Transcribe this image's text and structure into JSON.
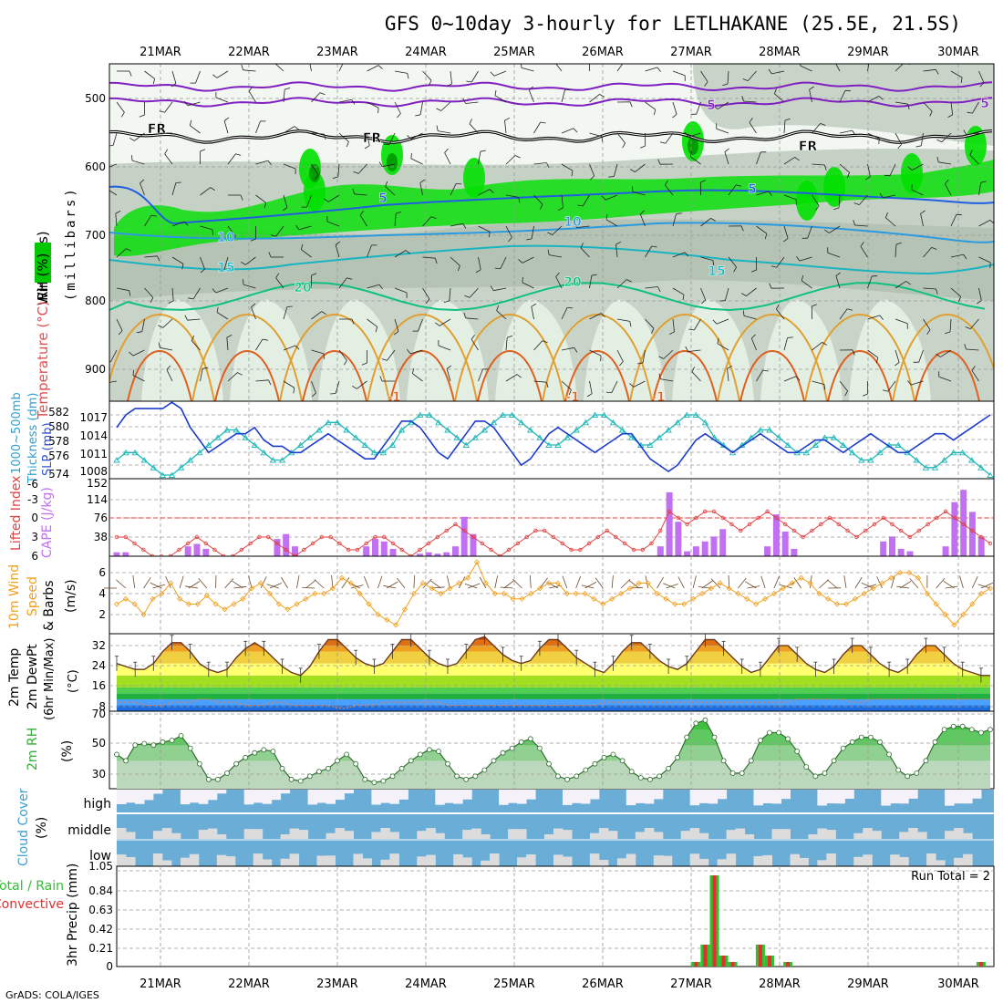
{
  "title": "GFS 0~10day 3-hourly for LETLHAKANE (25.5E, 21.5S)",
  "footer": "GrADS: COLA/IGES",
  "date_labels": [
    "21MAR",
    "22MAR",
    "23MAR",
    "24MAR",
    "25MAR",
    "26MAR",
    "27MAR",
    "28MAR",
    "29MAR",
    "30MAR"
  ],
  "colors": {
    "rh_green": "#00e000",
    "rh_dark": "#00a000",
    "rh_gray": "#a8b8a8",
    "rh_light": "#e6f0e6",
    "temp_5": "#1f5fe0",
    "temp_10": "#2b9be0",
    "temp_15": "#18b4c0",
    "temp_20": "#10c080",
    "temp_warm": "#e0a030",
    "temp_hot": "#e06020",
    "temp_500": "#8020c0",
    "slp": "#1c3ccc",
    "thickness": "#20b8b8",
    "li": "#e04040",
    "cape": "#c070f0",
    "wind10": "#f0a020",
    "precip_total": "#30c030",
    "precip_conv": "#e03030",
    "cloud": "#6aaed8",
    "cloud_clear": "#dcdcdc"
  },
  "panels": {
    "upper": {
      "ylabel_wind": "Wind (m/s)",
      "ylabel_temp": "Temperature (°C)",
      "ylabel_rh": "RH (%)",
      "ylabel_pressure": "(millibars)",
      "levels": [
        500,
        600,
        700,
        800,
        900
      ],
      "isotherm_labels": [
        {
          "text": "5",
          "color_key": "temp_500"
        },
        {
          "text": "5",
          "color_key": "temp_500"
        },
        {
          "text": "FR",
          "color_key": "black"
        },
        {
          "text": "FR",
          "color_key": "black"
        },
        {
          "text": "FR",
          "color_key": "black"
        },
        {
          "text": "5",
          "color_key": "temp_5"
        },
        {
          "text": "5",
          "color_key": "temp_5"
        },
        {
          "text": "10",
          "color_key": "temp_10"
        },
        {
          "text": "10",
          "color_key": "temp_10"
        },
        {
          "text": "15",
          "color_key": "temp_15"
        },
        {
          "text": "15",
          "color_key": "temp_15"
        },
        {
          "text": "20",
          "color_key": "temp_20"
        },
        {
          "text": "20",
          "color_key": "temp_20"
        },
        {
          "text": "-1",
          "color_key": "temp_hot"
        },
        {
          "text": "-1",
          "color_key": "temp_hot"
        },
        {
          "text": "-1",
          "color_key": "temp_hot"
        }
      ]
    },
    "slp": {
      "ylabel_left": "Thickness (dm)",
      "ylabel_left2": "1000~500mb",
      "ylabel_right": "SLP (mb)",
      "ticks_thickness": [
        "582",
        "580",
        "578",
        "576",
        "574"
      ],
      "ticks_slp": [
        "1017",
        "1014",
        "1011",
        "1008"
      ]
    },
    "cape": {
      "ylabel_left": "Lifted Index",
      "ylabel_right": "CAPE (J/kg)",
      "ticks_li": [
        "-6",
        "-3",
        "0",
        "3",
        "6"
      ],
      "ticks_cape": [
        "152",
        "114",
        "76",
        "38"
      ]
    },
    "wind10": {
      "ylabel1": "10m Wind",
      "ylabel2": "Speed",
      "ylabel3": "& Barbs",
      "ylabel_units": "(m/s)",
      "ticks": [
        "6",
        "4",
        "2"
      ]
    },
    "temp2m": {
      "ylabel1": "2m Temp",
      "ylabel2": "2m DewPt",
      "ylabel3": "(6hr Min/Max)",
      "ylabel_units": "(°C)",
      "ticks": [
        "32",
        "24",
        "16",
        "8"
      ]
    },
    "rh2m": {
      "ylabel": "2m RH",
      "ylabel_units": "(%)",
      "ticks": [
        "70",
        "50",
        "30"
      ]
    },
    "cloud": {
      "ylabel": "Cloud Cover",
      "ylabel_units": "(%)",
      "labels": [
        "high",
        "middle",
        "low"
      ]
    },
    "precip": {
      "ylabel1": "Total / Rain",
      "ylabel2": "Convective",
      "ylabel_units": "3hr Precip (mm)",
      "ticks": [
        "1.05",
        "0.84",
        "0.63",
        "0.42",
        "0.21",
        "0"
      ],
      "run_total": "Run Total = 2"
    }
  },
  "chart_data": [
    {
      "type": "line",
      "name": "slp_thickness",
      "series": [
        {
          "name": "SLP (mb)",
          "unit": "mb",
          "values": [
            1015,
            1017,
            1018,
            1018,
            1018,
            1018,
            1019,
            1018,
            1015,
            1013,
            1011,
            1012,
            1013,
            1014,
            1014,
            1015,
            1013,
            1012,
            1012,
            1011,
            1011,
            1012,
            1013,
            1014,
            1013,
            1012,
            1011,
            1010,
            1010,
            1012,
            1014,
            1016,
            1016,
            1015,
            1013,
            1011,
            1010,
            1012,
            1014,
            1016,
            1016,
            1015,
            1013,
            1011,
            1009,
            1010,
            1012,
            1014,
            1015,
            1014,
            1013,
            1012,
            1011,
            1012,
            1013,
            1014,
            1014,
            1012,
            1010,
            1009,
            1008,
            1009,
            1011,
            1013,
            1014,
            1013,
            1012,
            1011,
            1012,
            1013,
            1014,
            1013,
            1012,
            1011,
            1011,
            1012,
            1013,
            1013,
            1012,
            1011,
            1012,
            1013,
            1014,
            1013,
            1012,
            1011,
            1011,
            1012,
            1013,
            1014,
            1014,
            1013,
            1014,
            1015,
            1016,
            1017
          ]
        },
        {
          "name": "Thickness (dm)",
          "unit": "dm",
          "values": [
            576,
            577,
            577,
            576,
            575,
            574,
            574,
            575,
            576,
            577,
            578,
            579,
            580,
            580,
            579,
            578,
            577,
            576,
            576,
            577,
            578,
            579,
            580,
            581,
            581,
            580,
            579,
            578,
            577,
            577,
            578,
            580,
            581,
            582,
            582,
            581,
            580,
            579,
            578,
            579,
            580,
            581,
            582,
            582,
            581,
            580,
            579,
            578,
            578,
            579,
            580,
            581,
            582,
            582,
            581,
            580,
            579,
            578,
            578,
            579,
            580,
            581,
            582,
            582,
            581,
            579,
            578,
            577,
            578,
            579,
            580,
            580,
            579,
            578,
            577,
            577,
            578,
            579,
            579,
            578,
            577,
            576,
            576,
            577,
            578,
            578,
            577,
            576,
            575,
            575,
            576,
            577,
            577,
            576,
            575,
            574
          ]
        }
      ]
    },
    {
      "type": "bar",
      "name": "cape_li",
      "cape_values": [
        8,
        8,
        0,
        0,
        0,
        0,
        0,
        0,
        20,
        25,
        15,
        0,
        0,
        0,
        0,
        0,
        0,
        0,
        35,
        45,
        20,
        0,
        0,
        0,
        0,
        0,
        0,
        0,
        20,
        35,
        30,
        15,
        0,
        0,
        5,
        8,
        5,
        8,
        20,
        80,
        45,
        0,
        0,
        0,
        0,
        0,
        0,
        0,
        0,
        0,
        0,
        0,
        0,
        0,
        0,
        0,
        0,
        0,
        0,
        0,
        0,
        20,
        130,
        70,
        10,
        20,
        30,
        40,
        55,
        0,
        0,
        0,
        0,
        20,
        85,
        50,
        15,
        0,
        0,
        0,
        0,
        0,
        0,
        0,
        0,
        0,
        30,
        40,
        15,
        10,
        0,
        0,
        0,
        20,
        110,
        135,
        90,
        40,
        0
      ],
      "li_values": [
        3,
        3,
        4,
        5,
        6,
        6,
        6,
        5,
        4,
        3,
        4,
        5,
        6,
        6,
        5,
        4,
        3,
        3,
        4,
        5,
        6,
        5,
        4,
        3,
        3,
        4,
        5,
        5,
        4,
        3,
        3,
        4,
        5,
        6,
        5,
        4,
        3,
        2,
        1,
        2,
        3,
        4,
        5,
        6,
        5,
        4,
        3,
        2,
        2,
        3,
        4,
        5,
        5,
        4,
        3,
        2,
        3,
        4,
        5,
        5,
        4,
        2,
        -1,
        0,
        1,
        0,
        -1,
        -1,
        0,
        1,
        2,
        1,
        0,
        -1,
        0,
        1,
        2,
        3,
        2,
        1,
        0,
        1,
        2,
        3,
        2,
        1,
        0,
        1,
        2,
        3,
        2,
        1,
        0,
        -1,
        0,
        1,
        2,
        3,
        4
      ]
    },
    {
      "type": "line",
      "name": "wind10m_speed",
      "values": [
        3,
        3.5,
        3,
        2,
        3.5,
        4,
        5,
        3.5,
        3,
        3,
        3.8,
        3,
        2.5,
        3,
        3.5,
        4.5,
        5,
        4,
        3,
        2.5,
        3,
        3.5,
        4,
        4,
        4.5,
        5.5,
        5,
        4,
        3,
        2,
        1.5,
        1,
        2.5,
        4,
        5,
        4.5,
        4,
        4.5,
        5,
        5.5,
        7,
        5,
        4,
        4,
        3.5,
        3.5,
        4,
        4.5,
        5,
        5,
        4,
        4,
        4,
        3.5,
        3,
        3.5,
        4,
        4.5,
        5,
        5,
        4,
        3.5,
        3,
        3,
        3.5,
        4,
        4.5,
        5,
        4.5,
        4,
        3.5,
        3,
        3.5,
        4,
        4.5,
        5,
        5.5,
        5,
        4,
        3.5,
        3,
        3,
        3.5,
        4,
        4.5,
        5,
        5.5,
        6,
        6,
        5.5,
        4,
        3,
        2,
        1,
        2,
        3,
        4,
        4.5
      ]
    },
    {
      "type": "area",
      "name": "temp2m",
      "temperature": [
        24,
        23,
        22,
        22,
        24,
        28,
        31,
        31,
        28,
        24,
        22,
        21,
        22,
        26,
        29,
        31,
        29,
        26,
        23,
        21,
        20,
        23,
        28,
        32,
        32,
        29,
        26,
        24,
        23,
        24,
        28,
        32,
        32,
        29,
        26,
        24,
        23,
        24,
        28,
        32,
        33,
        30,
        27,
        25,
        24,
        25,
        29,
        32,
        32,
        29,
        26,
        24,
        22,
        21,
        24,
        28,
        31,
        31,
        28,
        25,
        23,
        22,
        24,
        28,
        32,
        32,
        29,
        26,
        23,
        21,
        22,
        26,
        30,
        30,
        27,
        24,
        22,
        21,
        23,
        27,
        30,
        30,
        27,
        24,
        22,
        21,
        23,
        27,
        30,
        30,
        27,
        24,
        22,
        21,
        20,
        20
      ],
      "dewpoint": [
        11,
        11,
        11,
        10,
        10,
        10,
        11,
        11,
        11,
        12,
        12,
        11,
        11,
        11,
        10,
        10,
        10,
        11,
        11,
        10,
        10,
        10,
        10,
        10,
        9,
        9,
        10,
        10,
        10,
        11,
        11,
        11,
        11,
        11,
        11,
        11,
        10,
        10,
        10,
        10,
        10,
        10,
        10,
        10,
        10,
        10,
        10,
        10,
        10,
        10,
        10,
        10,
        10,
        11,
        11,
        11,
        11,
        11,
        11,
        11,
        11,
        11,
        11,
        11,
        11,
        11,
        11,
        11,
        11,
        11,
        11,
        11,
        11,
        11,
        12,
        12,
        12,
        12,
        12,
        12,
        11,
        11,
        12,
        12,
        12,
        12,
        12,
        12,
        12,
        12,
        12,
        12,
        12,
        12,
        12,
        12
      ],
      "ylim": [
        8,
        34
      ]
    },
    {
      "type": "area",
      "name": "rh2m",
      "values": [
        44,
        40,
        50,
        51,
        50,
        52,
        53,
        56,
        48,
        38,
        28,
        28,
        32,
        38,
        42,
        45,
        47,
        46,
        35,
        28,
        27,
        30,
        33,
        35,
        40,
        44,
        38,
        28,
        26,
        27,
        30,
        35,
        40,
        44,
        47,
        46,
        38,
        30,
        28,
        30,
        34,
        40,
        45,
        48,
        52,
        54,
        48,
        38,
        30,
        28,
        30,
        34,
        38,
        42,
        44,
        40,
        33,
        29,
        28,
        30,
        35,
        42,
        55,
        64,
        66,
        55,
        40,
        32,
        32,
        40,
        53,
        58,
        58,
        54,
        46,
        36,
        30,
        32,
        40,
        48,
        52,
        55,
        55,
        52,
        44,
        34,
        30,
        32,
        40,
        52,
        60,
        62,
        62,
        60,
        58,
        60
      ],
      "ylim": [
        22,
        70
      ]
    },
    {
      "type": "bar",
      "name": "precip_3hr",
      "total_values": [
        0,
        0,
        0,
        0,
        0,
        0,
        0,
        0,
        0,
        0,
        0,
        0,
        0,
        0,
        0,
        0,
        0,
        0,
        0,
        0,
        0,
        0,
        0,
        0,
        0,
        0,
        0,
        0,
        0,
        0,
        0,
        0,
        0,
        0,
        0,
        0,
        0,
        0,
        0,
        0,
        0,
        0,
        0,
        0,
        0,
        0,
        0,
        0,
        0,
        0,
        0,
        0,
        0,
        0,
        0,
        0,
        0,
        0,
        0,
        0,
        0,
        0,
        0,
        0.05,
        0.24,
        1.0,
        0.12,
        0.05,
        0,
        0,
        0.24,
        0.12,
        0,
        0.05,
        0,
        0,
        0,
        0,
        0,
        0,
        0,
        0,
        0,
        0,
        0,
        0,
        0,
        0,
        0,
        0,
        0,
        0,
        0,
        0,
        0.05,
        0
      ],
      "ylim": [
        0,
        1.05
      ]
    }
  ]
}
